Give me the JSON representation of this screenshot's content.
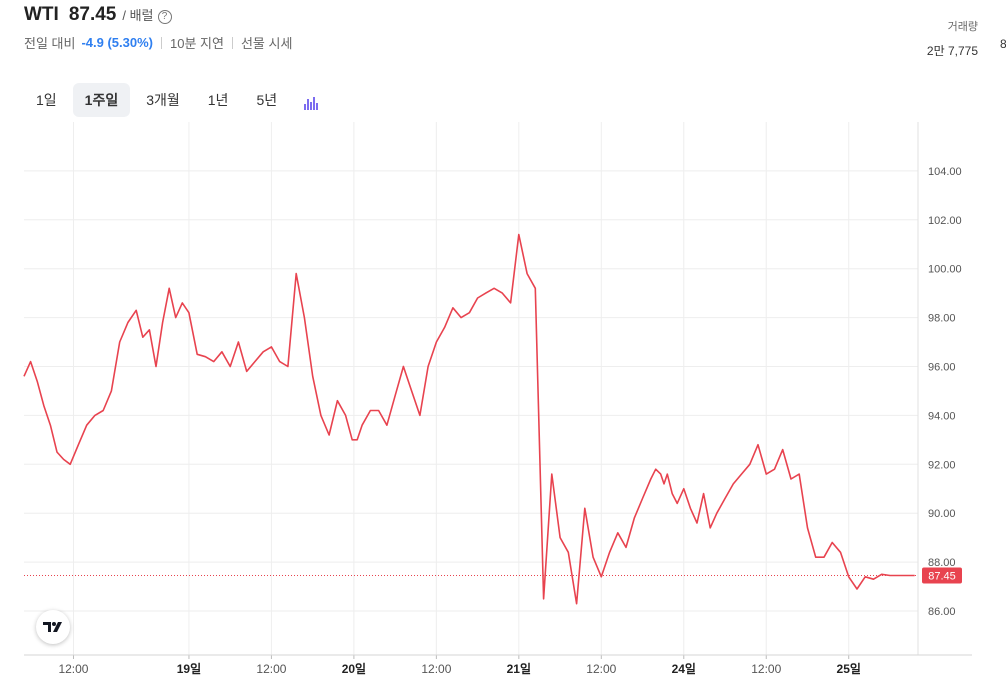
{
  "header": {
    "symbol": "WTI",
    "price": "87.45",
    "unit": "/ 배럴",
    "help_glyph": "?",
    "change_label": "전일 대비",
    "change_value": "-4.9 (5.30%)",
    "delay": "10분 지연",
    "source": "선물 시세"
  },
  "volume": {
    "label": "거래량",
    "value": "2만 7,775",
    "clipped_char": "8"
  },
  "periods": [
    {
      "label": "1일",
      "active": false
    },
    {
      "label": "1주일",
      "active": true
    },
    {
      "label": "3개월",
      "active": false
    },
    {
      "label": "1년",
      "active": false
    },
    {
      "label": "5년",
      "active": false
    }
  ],
  "icons": {
    "indicator": "indicator-bars-icon",
    "logo": "tradingview-logo-icon"
  },
  "colors": {
    "line": "#e8434f",
    "last_price_bg": "#e8434f",
    "change": "#2f7ff0",
    "grid": "#eeeeee"
  },
  "chart_data": {
    "type": "line",
    "title": "",
    "xlabel": "",
    "ylabel": "",
    "ylim": [
      84.2,
      106.0
    ],
    "yticks": [
      "104.00",
      "102.00",
      "100.00",
      "98.00",
      "96.00",
      "94.00",
      "92.00",
      "90.00",
      "88.00",
      "86.00"
    ],
    "x_ticks": [
      {
        "x": 0.3,
        "label": "12:00",
        "bold": false
      },
      {
        "x": 1.0,
        "label": "19일",
        "bold": true
      },
      {
        "x": 1.5,
        "label": "12:00",
        "bold": false
      },
      {
        "x": 2.0,
        "label": "20일",
        "bold": true
      },
      {
        "x": 2.5,
        "label": "12:00",
        "bold": false
      },
      {
        "x": 3.0,
        "label": "21일",
        "bold": true
      },
      {
        "x": 3.5,
        "label": "12:00",
        "bold": false
      },
      {
        "x": 4.0,
        "label": "24일",
        "bold": true
      },
      {
        "x": 4.5,
        "label": "12:00",
        "bold": false
      },
      {
        "x": 5.0,
        "label": "25일",
        "bold": true
      }
    ],
    "last_price": 87.45,
    "last_price_label": "87.45",
    "series": [
      {
        "x": [
          0.0,
          0.04,
          0.08,
          0.12,
          0.16,
          0.2,
          0.24,
          0.28,
          0.33,
          0.38,
          0.43,
          0.48,
          0.53,
          0.58,
          0.63,
          0.68,
          0.72,
          0.76,
          0.8,
          0.84,
          0.88,
          0.92,
          0.96,
          1.0,
          1.05,
          1.1,
          1.15,
          1.2,
          1.25,
          1.3,
          1.35,
          1.4,
          1.45,
          1.5,
          1.55,
          1.6,
          1.65,
          1.7,
          1.75,
          1.8,
          1.85,
          1.9,
          1.95,
          1.99,
          2.02,
          2.05,
          2.1,
          2.15,
          2.2,
          2.25,
          2.3,
          2.35,
          2.4,
          2.45,
          2.5,
          2.55,
          2.6,
          2.65,
          2.7,
          2.75,
          2.8,
          2.85,
          2.9,
          2.95,
          3.0,
          3.05,
          3.1,
          3.15,
          3.2,
          3.25,
          3.3,
          3.35,
          3.4,
          3.45,
          3.5,
          3.55,
          3.6,
          3.65,
          3.7,
          3.75,
          3.8,
          3.83,
          3.86,
          3.88,
          3.9,
          3.93,
          3.96,
          4.0,
          4.04,
          4.08,
          4.12,
          4.16,
          4.2,
          4.25,
          4.3,
          4.35,
          4.4,
          4.45,
          4.5,
          4.55,
          4.6,
          4.65,
          4.7,
          4.75,
          4.8,
          4.85,
          4.9,
          4.95,
          5.0,
          5.05,
          5.1,
          5.15,
          5.2,
          5.25,
          5.3,
          5.33,
          5.36,
          5.4
        ],
        "y": [
          95.6,
          96.2,
          95.4,
          94.4,
          93.6,
          92.5,
          92.2,
          92.0,
          92.8,
          93.6,
          94.0,
          94.2,
          95.0,
          97.0,
          97.8,
          98.3,
          97.2,
          97.5,
          96.0,
          97.8,
          99.2,
          98.0,
          98.6,
          98.2,
          96.5,
          96.4,
          96.2,
          96.6,
          96.0,
          97.0,
          95.8,
          96.2,
          96.6,
          96.8,
          96.2,
          96.0,
          99.8,
          98.0,
          95.6,
          94.0,
          93.2,
          94.6,
          94.0,
          93.0,
          93.0,
          93.6,
          94.2,
          94.2,
          93.6,
          94.8,
          96.0,
          95.0,
          94.0,
          96.0,
          97.0,
          97.6,
          98.4,
          98.0,
          98.2,
          98.8,
          99.0,
          99.2,
          99.0,
          98.6,
          101.4,
          99.8,
          99.2,
          86.5,
          91.6,
          89.0,
          88.4,
          86.3,
          90.2,
          88.2,
          87.4,
          88.4,
          89.2,
          88.6,
          89.8,
          90.6,
          91.4,
          91.8,
          91.6,
          91.2,
          91.6,
          90.8,
          90.4,
          91.0,
          90.2,
          89.6,
          90.8,
          89.4,
          90.0,
          90.6,
          91.2,
          91.6,
          92.0,
          92.8,
          91.6,
          91.8,
          92.6,
          91.4,
          91.6,
          89.4,
          88.2,
          88.2,
          88.8,
          88.4,
          87.4,
          86.9,
          87.4,
          87.3,
          87.5,
          87.45,
          87.45,
          87.45,
          87.45,
          87.45
        ]
      }
    ]
  }
}
